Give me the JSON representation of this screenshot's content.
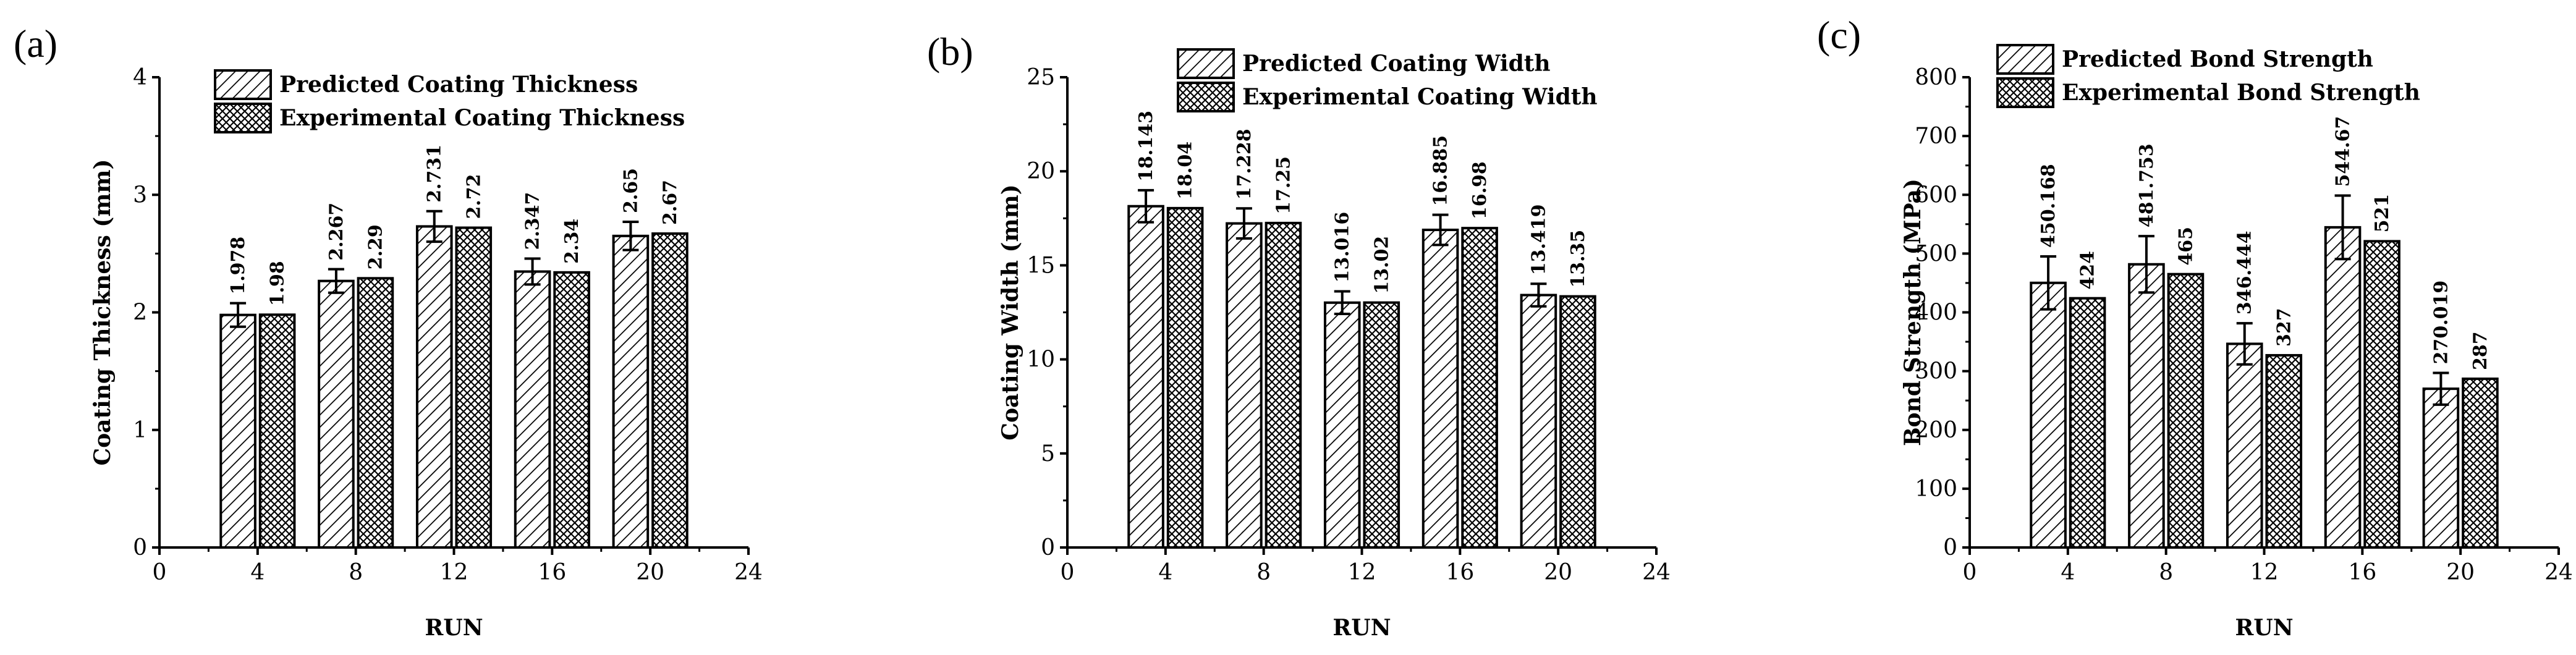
{
  "chart_data": [
    {
      "type": "bar",
      "panel": "(a)",
      "xlabel": "RUN",
      "ylabel": "Coating Thickness (mm)",
      "xlim": [
        0,
        24
      ],
      "xticks": [
        0,
        4,
        8,
        12,
        16,
        20,
        24
      ],
      "ylim": [
        0,
        4
      ],
      "yticks": [
        0,
        1,
        2,
        3,
        4
      ],
      "legend": [
        "Predicted Coating Thickness",
        "Experimental Coating Thickness"
      ],
      "legend_position": "top-center",
      "bar_width": 1.4,
      "series": [
        {
          "name": "Predicted Coating Thickness",
          "pattern": "diagonal",
          "x": [
            3.2,
            7.2,
            11.2,
            15.2,
            19.2
          ],
          "values": [
            1.978,
            2.267,
            2.731,
            2.347,
            2.65
          ],
          "labels": [
            "1.978",
            "2.267",
            "2.731",
            "2.347",
            "2.65"
          ],
          "errors": [
            0.1,
            0.1,
            0.13,
            0.11,
            0.12
          ]
        },
        {
          "name": "Experimental Coating Thickness",
          "pattern": "crosshatch",
          "x": [
            4.8,
            8.8,
            12.8,
            16.8,
            20.8
          ],
          "values": [
            1.98,
            2.29,
            2.72,
            2.34,
            2.67
          ],
          "labels": [
            "1.98",
            "2.29",
            "2.72",
            "2.34",
            "2.67"
          ]
        }
      ]
    },
    {
      "type": "bar",
      "panel": "(b)",
      "xlabel": "RUN",
      "ylabel": "Coating Width (mm)",
      "xlim": [
        0,
        24
      ],
      "xticks": [
        0,
        4,
        8,
        12,
        16,
        20,
        24
      ],
      "ylim": [
        0,
        25
      ],
      "yticks": [
        0,
        5,
        10,
        15,
        20,
        25
      ],
      "legend": [
        "Predicted Coating Width",
        "Experimental Coating Width"
      ],
      "legend_position": "top-center",
      "bar_width": 1.4,
      "series": [
        {
          "name": "Predicted Coating Width",
          "pattern": "diagonal",
          "x": [
            3.2,
            7.2,
            11.2,
            15.2,
            19.2
          ],
          "values": [
            18.143,
            17.228,
            13.016,
            16.885,
            13.419
          ],
          "labels": [
            "18.143",
            "17.228",
            "13.016",
            "16.885",
            "13.419"
          ],
          "errors": [
            0.85,
            0.8,
            0.6,
            0.8,
            0.6
          ]
        },
        {
          "name": "Experimental Coating Width",
          "pattern": "crosshatch",
          "x": [
            4.8,
            8.8,
            12.8,
            16.8,
            20.8
          ],
          "values": [
            18.04,
            17.25,
            13.02,
            16.98,
            13.35
          ],
          "labels": [
            "18.04",
            "17.25",
            "13.02",
            "16.98",
            "13.35"
          ]
        }
      ]
    },
    {
      "type": "bar",
      "panel": "(c)",
      "xlabel": "RUN",
      "ylabel": "Bond Strength (MPa)",
      "xlim": [
        0,
        24
      ],
      "xticks": [
        0,
        4,
        8,
        12,
        16,
        20,
        24
      ],
      "ylim": [
        0,
        800
      ],
      "yticks": [
        0,
        100,
        200,
        300,
        400,
        500,
        600,
        700,
        800
      ],
      "legend": [
        "Predicted Bond Strength",
        "Experimental Bond Strength"
      ],
      "legend_position": "top-center",
      "bar_width": 1.4,
      "series": [
        {
          "name": "Predicted Bond Strength",
          "pattern": "diagonal",
          "x": [
            3.2,
            7.2,
            11.2,
            15.2,
            19.2
          ],
          "values": [
            450.168,
            481.753,
            346.444,
            544.67,
            270.019
          ],
          "labels": [
            "450.168",
            "481.753",
            "346.444",
            "544.67",
            "270.019"
          ],
          "errors": [
            45,
            48,
            35,
            54,
            27
          ]
        },
        {
          "name": "Experimental Bond Strength",
          "pattern": "crosshatch",
          "x": [
            4.8,
            8.8,
            12.8,
            16.8,
            20.8
          ],
          "values": [
            424,
            465,
            327,
            521,
            287
          ],
          "labels": [
            "424",
            "465",
            "327",
            "521",
            "287"
          ]
        }
      ]
    }
  ]
}
